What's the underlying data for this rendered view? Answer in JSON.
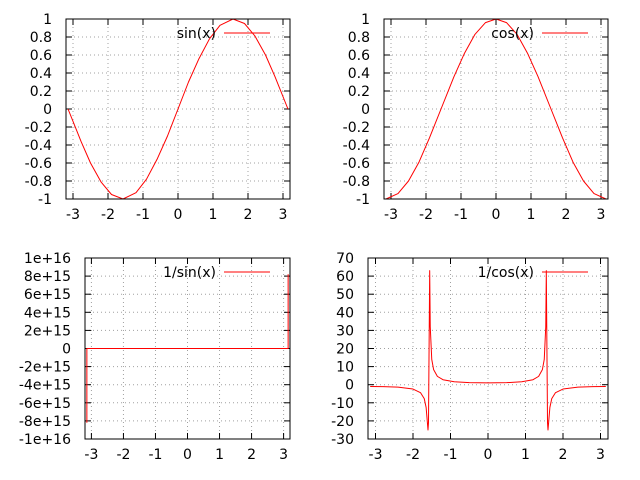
{
  "chart_data": [
    {
      "type": "line",
      "xlim": [
        -3.2,
        3.2
      ],
      "ylim": [
        -1,
        1
      ],
      "xticks": [
        -3,
        -2,
        -1,
        0,
        1,
        2,
        3
      ],
      "yticks": [
        -1,
        -0.8,
        -0.6,
        -0.4,
        -0.2,
        0,
        0.2,
        0.4,
        0.6,
        0.8,
        1
      ],
      "ytick_labels": [
        "-1",
        "-0.8",
        "-0.6",
        "-0.4",
        "-0.2",
        "0",
        "0.2",
        "0.4",
        "0.6",
        "0.8",
        "1"
      ],
      "grid": true,
      "legend_position": "top-right",
      "series": [
        {
          "name": "sin(x)",
          "color": "#ff0000",
          "x": [
            -3.14159,
            -2.77,
            -2.5,
            -2.2,
            -1.9,
            -1.5708,
            -1.2,
            -0.9,
            -0.6,
            -0.3,
            0,
            0.3,
            0.6,
            0.9,
            1.2,
            1.5708,
            1.9,
            2.2,
            2.5,
            2.77,
            3.14159
          ],
          "y": [
            0,
            -0.36,
            -0.6,
            -0.81,
            -0.95,
            -1,
            -0.93,
            -0.78,
            -0.56,
            -0.3,
            0,
            0.3,
            0.56,
            0.78,
            0.93,
            1,
            0.95,
            0.81,
            0.6,
            0.36,
            0
          ]
        }
      ]
    },
    {
      "type": "line",
      "xlim": [
        -3.2,
        3.2
      ],
      "ylim": [
        -1,
        1
      ],
      "xticks": [
        -3,
        -2,
        -1,
        0,
        1,
        2,
        3
      ],
      "yticks": [
        -1,
        -0.8,
        -0.6,
        -0.4,
        -0.2,
        0,
        0.2,
        0.4,
        0.6,
        0.8,
        1
      ],
      "ytick_labels": [
        "-1",
        "-0.8",
        "-0.6",
        "-0.4",
        "-0.2",
        "0",
        "0.2",
        "0.4",
        "0.6",
        "0.8",
        "1"
      ],
      "grid": true,
      "legend_position": "top-right",
      "series": [
        {
          "name": "cos(x)",
          "color": "#ff0000",
          "x": [
            -3.14159,
            -2.8,
            -2.5,
            -2.2,
            -1.9,
            -1.5708,
            -1.2,
            -0.9,
            -0.6,
            -0.3,
            0,
            0.3,
            0.6,
            0.9,
            1.2,
            1.5708,
            1.9,
            2.2,
            2.5,
            2.8,
            3.14159
          ],
          "y": [
            -1,
            -0.94,
            -0.8,
            -0.59,
            -0.32,
            0,
            0.36,
            0.62,
            0.83,
            0.96,
            1,
            0.96,
            0.83,
            0.62,
            0.36,
            0,
            -0.32,
            -0.59,
            -0.8,
            -0.94,
            -1
          ]
        }
      ]
    },
    {
      "type": "line",
      "xlim": [
        -3.2,
        3.2
      ],
      "ylim": [
        -1e+16,
        1e+16
      ],
      "xticks": [
        -3,
        -2,
        -1,
        0,
        1,
        2,
        3
      ],
      "yticks": [
        -1e+16,
        -8000000000000000.0,
        -6000000000000000.0,
        -4000000000000000.0,
        -2000000000000000.0,
        0,
        2000000000000000.0,
        4000000000000000.0,
        6000000000000000.0,
        8000000000000000.0,
        1e+16
      ],
      "ytick_labels": [
        "-1e+16",
        "-8e+15",
        "-6e+15",
        "-4e+15",
        "-2e+15",
        "0",
        "2e+15",
        "4e+15",
        "6e+15",
        "8e+15",
        "1e+16"
      ],
      "grid": true,
      "legend_position": "top-right",
      "series": [
        {
          "name": "1/sin(x)",
          "color": "#ff0000",
          "x": [
            -3.1416,
            -3.1416,
            -3.05,
            -2.5,
            -1.5708,
            -0.5,
            0,
            0.5,
            1.5708,
            2.5,
            3.05,
            3.1416,
            3.1416
          ],
          "y": [
            -8200000000000000.0,
            0,
            -11,
            -1.7,
            -1,
            -2.1,
            0,
            2.1,
            1,
            1.7,
            11,
            0,
            8200000000000000.0
          ]
        }
      ]
    },
    {
      "type": "line",
      "xlim": [
        -3.2,
        3.2
      ],
      "ylim": [
        -30,
        70
      ],
      "xticks": [
        -3,
        -2,
        -1,
        0,
        1,
        2,
        3
      ],
      "yticks": [
        -30,
        -20,
        -10,
        0,
        10,
        20,
        30,
        40,
        50,
        60,
        70
      ],
      "ytick_labels": [
        "-30",
        "-20",
        "-10",
        "0",
        "10",
        "20",
        "30",
        "40",
        "50",
        "60",
        "70"
      ],
      "grid": true,
      "legend_position": "top-right",
      "series": [
        {
          "name": "1/cos(x)",
          "color": "#ff0000",
          "x": [
            -3.1416,
            -2.8,
            -2.4,
            -2.0,
            -1.8,
            -1.7,
            -1.65,
            -1.6,
            -1.587,
            -1.555,
            -1.54,
            -1.5,
            -1.45,
            -1.35,
            -1.2,
            -0.9,
            -0.5,
            0,
            0.5,
            0.9,
            1.2,
            1.35,
            1.45,
            1.5,
            1.54,
            1.555,
            1.587,
            1.6,
            1.65,
            1.7,
            1.8,
            2.0,
            2.4,
            2.8,
            3.1416
          ],
          "y": [
            -1,
            -1.06,
            -1.36,
            -2.4,
            -4.4,
            -7.7,
            -12.6,
            -25,
            -21,
            63,
            32,
            14,
            8.3,
            4.6,
            2.76,
            1.61,
            1.14,
            1,
            1.14,
            1.61,
            2.76,
            4.6,
            8.3,
            14,
            32,
            63,
            -21,
            -25,
            -12.6,
            -7.7,
            -4.4,
            -2.4,
            -1.36,
            -1.06,
            -1
          ]
        }
      ]
    }
  ]
}
